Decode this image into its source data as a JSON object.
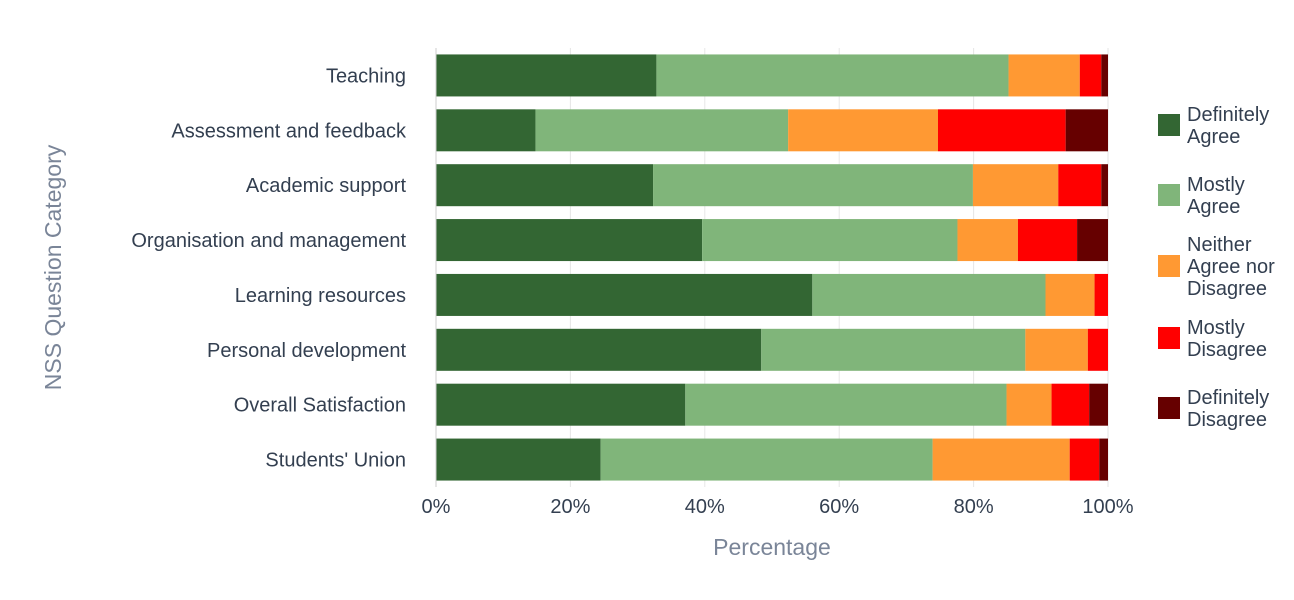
{
  "chart_data": {
    "type": "bar",
    "orientation": "horizontal",
    "stacked": "percent",
    "title": "",
    "xlabel": "Percentage",
    "ylabel": "NSS Question Category",
    "xlim": [
      0,
      100
    ],
    "xticks": [
      "0%",
      "20%",
      "40%",
      "60%",
      "80%",
      "100%"
    ],
    "grid": true,
    "legend_position": "right",
    "categories": [
      "Teaching",
      "Assessment and feedback",
      "Academic support",
      "Organisation and management",
      "Learning resources",
      "Personal development",
      "Overall Satisfaction",
      "Students' Union"
    ],
    "series": [
      {
        "name": "Definitely Agree",
        "legend_lines": [
          "Definitely",
          "Agree"
        ],
        "color": "#336633",
        "values": [
          32.8,
          14.8,
          32.3,
          39.6,
          56.0,
          48.4,
          37.1,
          24.5
        ]
      },
      {
        "name": "Mostly Agree",
        "legend_lines": [
          "Mostly",
          "Agree"
        ],
        "color": "#80b57a",
        "values": [
          52.4,
          37.6,
          47.6,
          38.0,
          34.7,
          39.3,
          47.8,
          49.4
        ]
      },
      {
        "name": "Neither Agree nor Disagree",
        "legend_lines": [
          "Neither",
          "Agree nor",
          "Disagree"
        ],
        "color": "#ff9933",
        "values": [
          10.6,
          22.3,
          12.7,
          9.0,
          7.3,
          9.3,
          6.7,
          20.4
        ]
      },
      {
        "name": "Mostly Disagree",
        "legend_lines": [
          "Mostly",
          "Disagree"
        ],
        "color": "#ff0000",
        "values": [
          3.2,
          19.0,
          6.4,
          8.8,
          2.0,
          3.0,
          5.6,
          4.4
        ]
      },
      {
        "name": "Definitely Disagree",
        "legend_lines": [
          "Definitely",
          "Disagree"
        ],
        "color": "#660000",
        "values": [
          1.0,
          6.3,
          1.0,
          4.6,
          0.0,
          0.0,
          2.8,
          1.3
        ]
      }
    ]
  }
}
